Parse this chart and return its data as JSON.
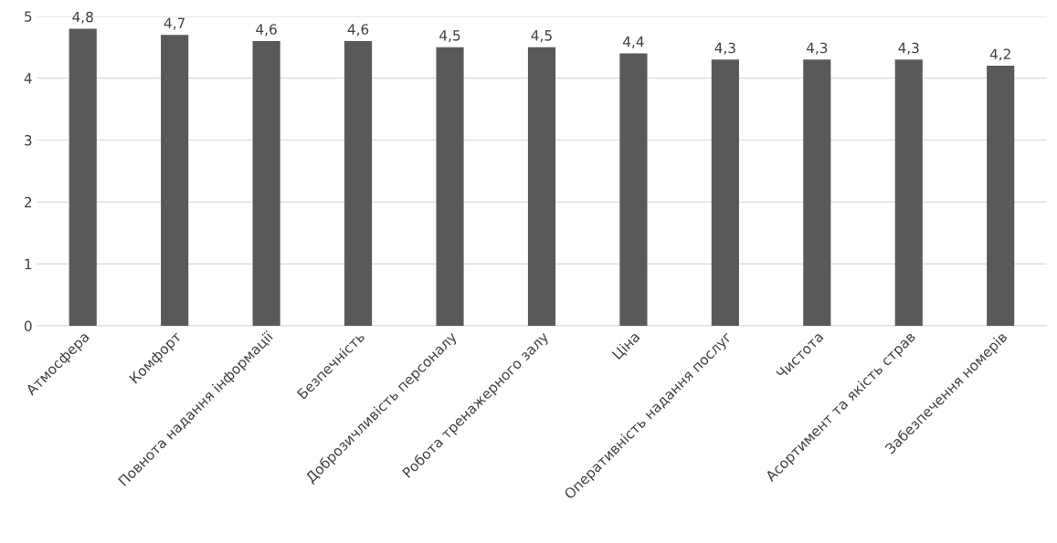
{
  "chart_data": {
    "type": "bar",
    "categories": [
      "Атмосфера",
      "Комфорт",
      "Повнота надання інформації",
      "Безпечність",
      "Доброзичливість персоналу",
      "Робота тренажерного залу",
      "Ціна",
      "Оперативність надання послуг",
      "Чистота",
      "Асортимент та якість страв",
      "Забезпечення номерів"
    ],
    "values": [
      4.8,
      4.7,
      4.6,
      4.6,
      4.5,
      4.5,
      4.4,
      4.3,
      4.3,
      4.3,
      4.2
    ],
    "value_labels": [
      "4,8",
      "4,7",
      "4,6",
      "4,6",
      "4,5",
      "4,5",
      "4,4",
      "4,3",
      "4,3",
      "4,3",
      "4,2"
    ],
    "color": "#595959",
    "ylim": [
      0,
      5
    ],
    "yticks": [
      0,
      1,
      2,
      3,
      4,
      5
    ],
    "grid": "y"
  }
}
